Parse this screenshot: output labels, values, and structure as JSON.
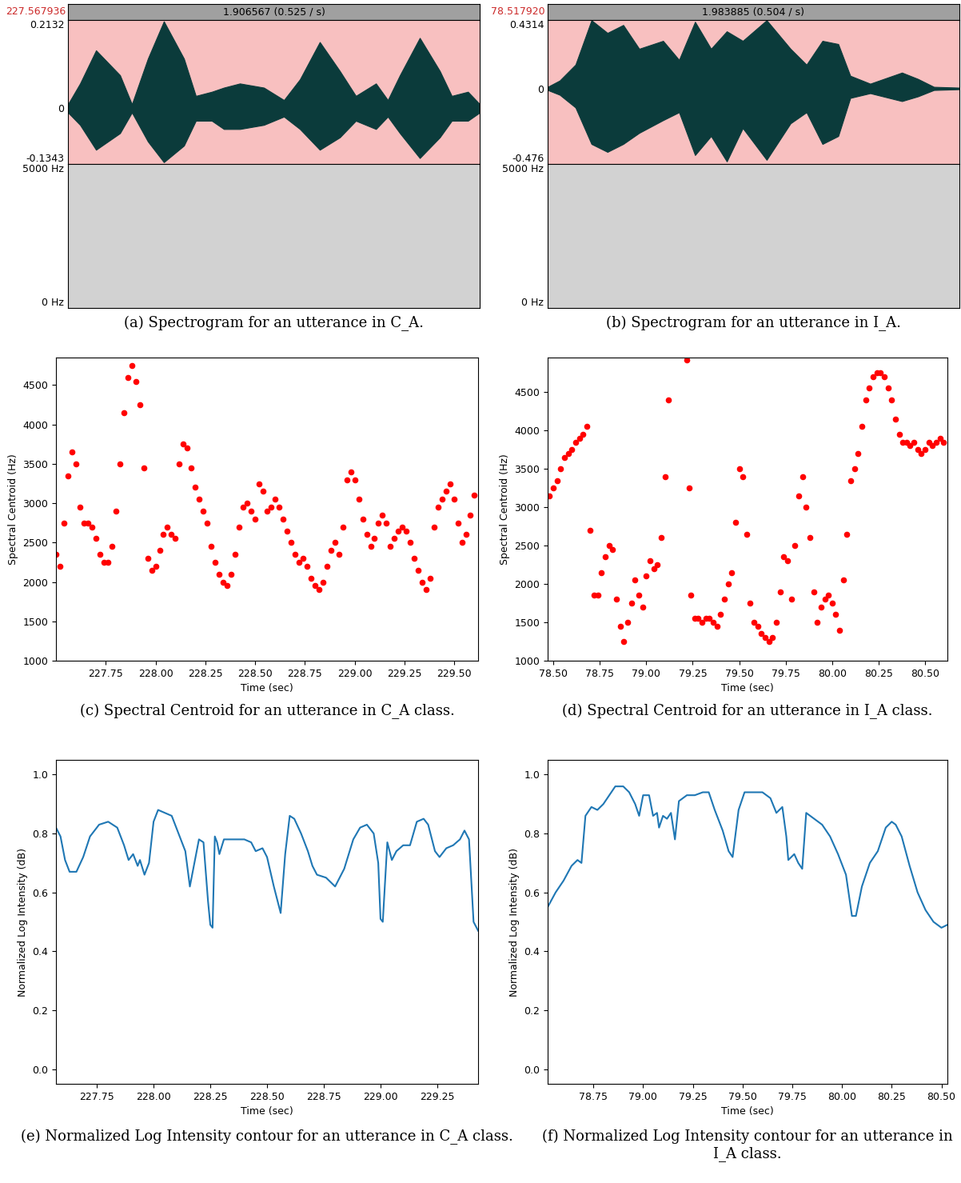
{
  "chart_data": [
    {
      "type": "spectrogram",
      "caption": "(a) Spectrogram for an utterance in C_A.",
      "header": "1.906567 (0.525 / s)",
      "start_label": "227.567936",
      "xlim": [
        227.567936,
        229.474503
      ],
      "tick_labels": "y",
      "waveform": {
        "color": "#0b3b3b",
        "ylim": [
          -0.1343,
          0.2132
        ],
        "yticks": [
          -0.1343,
          0,
          0.2132
        ],
        "x": [
          227.568,
          227.624,
          227.698,
          227.809,
          227.864,
          227.938,
          228.012,
          228.105,
          228.16,
          228.234,
          228.29,
          228.364,
          228.475,
          228.568,
          228.642,
          228.734,
          228.827,
          228.901,
          228.994,
          229.049,
          229.105,
          229.197,
          229.29,
          229.345,
          229.42,
          229.475
        ],
        "upper": [
          0.01,
          0.06,
          0.14,
          0.08,
          0.01,
          0.12,
          0.21,
          0.12,
          0.03,
          0.04,
          0.05,
          0.06,
          0.05,
          0.02,
          0.07,
          0.16,
          0.09,
          0.03,
          0.06,
          0.02,
          0.08,
          0.17,
          0.09,
          0.03,
          0.04,
          0.01
        ],
        "lower": [
          -0.01,
          -0.04,
          -0.1,
          -0.06,
          -0.01,
          -0.08,
          -0.13,
          -0.09,
          -0.03,
          -0.03,
          -0.05,
          -0.05,
          -0.04,
          -0.02,
          -0.05,
          -0.1,
          -0.07,
          -0.03,
          -0.05,
          -0.02,
          -0.06,
          -0.12,
          -0.07,
          -0.03,
          -0.03,
          -0.01
        ]
      },
      "spectrogram": {
        "ylim": [
          0,
          5000
        ],
        "yticks": [
          {
            "value": 0,
            "label": "0 Hz"
          },
          {
            "value": 5000,
            "label": "5000 Hz"
          }
        ]
      }
    },
    {
      "type": "spectrogram",
      "caption": "(b) Spectrogram for an utterance in I_A.",
      "header": "1.983885 (0.504 / s)",
      "start_label": "78.517920",
      "xlim": [
        78.51792,
        80.501805
      ],
      "tick_labels": "y",
      "waveform": {
        "color": "#0b3b3b",
        "ylim": [
          -0.476,
          0.4314
        ],
        "yticks": [
          -0.476,
          0,
          0.4314
        ],
        "x": [
          78.518,
          78.576,
          78.652,
          78.729,
          78.806,
          78.882,
          78.959,
          79.074,
          79.151,
          79.228,
          79.305,
          79.381,
          79.458,
          79.573,
          79.688,
          79.765,
          79.842,
          79.918,
          79.976,
          80.072,
          80.225,
          80.302,
          80.379,
          80.502
        ],
        "upper": [
          0.01,
          0.05,
          0.15,
          0.43,
          0.35,
          0.4,
          0.25,
          0.3,
          0.18,
          0.42,
          0.25,
          0.36,
          0.3,
          0.43,
          0.25,
          0.15,
          0.3,
          0.28,
          0.08,
          0.03,
          0.1,
          0.06,
          0.01,
          0.005
        ],
        "lower": [
          -0.01,
          -0.04,
          -0.12,
          -0.35,
          -0.4,
          -0.35,
          -0.28,
          -0.2,
          -0.15,
          -0.42,
          -0.3,
          -0.46,
          -0.25,
          -0.45,
          -0.22,
          -0.15,
          -0.35,
          -0.3,
          -0.06,
          -0.03,
          -0.08,
          -0.05,
          -0.01,
          -0.005
        ]
      },
      "spectrogram": {
        "ylim": [
          0,
          5000
        ],
        "yticks": [
          {
            "value": 0,
            "label": "0 Hz"
          },
          {
            "value": 5000,
            "label": "5000 Hz"
          }
        ]
      }
    },
    {
      "type": "scatter",
      "caption": "(c) Spectral Centroid for an utterance in C_A class.",
      "x_label": "Time (sec)",
      "y_label": "Spectral Centroid (Hz)",
      "color": "red",
      "marker": "o",
      "xlim": [
        227.5,
        229.62
      ],
      "ylim": [
        1000,
        4850
      ],
      "xticks": [
        {
          "value": 227.75,
          "label": "227.75"
        },
        {
          "value": 228.0,
          "label": "228.00"
        },
        {
          "value": 228.25,
          "label": "228.25"
        },
        {
          "value": 228.5,
          "label": "228.50"
        },
        {
          "value": 228.75,
          "label": "228.75"
        },
        {
          "value": 229.0,
          "label": "229.00"
        },
        {
          "value": 229.25,
          "label": "229.25"
        },
        {
          "value": 229.5,
          "label": "229.50"
        }
      ],
      "yticks": [
        1000,
        1500,
        2000,
        2500,
        3000,
        3500,
        4000,
        4500
      ],
      "x": [
        227.5,
        227.52,
        227.54,
        227.56,
        227.58,
        227.6,
        227.62,
        227.64,
        227.66,
        227.68,
        227.7,
        227.72,
        227.74,
        227.76,
        227.78,
        227.8,
        227.82,
        227.84,
        227.86,
        227.88,
        227.9,
        227.92,
        227.94,
        227.96,
        227.98,
        228.0,
        228.02,
        228.04,
        228.06,
        228.08,
        228.1,
        228.12,
        228.14,
        228.16,
        228.18,
        228.2,
        228.22,
        228.24,
        228.26,
        228.28,
        228.3,
        228.32,
        228.34,
        228.36,
        228.38,
        228.4,
        228.42,
        228.44,
        228.46,
        228.48,
        228.5,
        228.52,
        228.54,
        228.56,
        228.58,
        228.6,
        228.62,
        228.64,
        228.66,
        228.68,
        228.7,
        228.72,
        228.74,
        228.76,
        228.78,
        228.8,
        228.82,
        228.84,
        228.86,
        228.88,
        228.9,
        228.92,
        228.94,
        228.96,
        228.98,
        229.0,
        229.02,
        229.04,
        229.06,
        229.08,
        229.1,
        229.12,
        229.14,
        229.16,
        229.18,
        229.2,
        229.22,
        229.24,
        229.26,
        229.28,
        229.3,
        229.32,
        229.34,
        229.36,
        229.38,
        229.4,
        229.42,
        229.44,
        229.46,
        229.48,
        229.5,
        229.52,
        229.54,
        229.56,
        229.58,
        229.6
      ],
      "values": [
        2350,
        2200,
        2750,
        3350,
        3650,
        3500,
        2950,
        2750,
        2750,
        2700,
        2550,
        2350,
        2250,
        2250,
        2450,
        2900,
        3500,
        4150,
        4600,
        4750,
        4550,
        4250,
        3450,
        2300,
        2150,
        2200,
        2400,
        2600,
        2700,
        2600,
        2550,
        3500,
        3750,
        3700,
        3450,
        3200,
        3050,
        2900,
        2750,
        2450,
        2250,
        2100,
        2000,
        1950,
        2100,
        2350,
        2700,
        2950,
        3000,
        2900,
        2800,
        3250,
        3150,
        2900,
        2950,
        3050,
        2950,
        2800,
        2650,
        2500,
        2350,
        2250,
        2300,
        2200,
        2050,
        1950,
        1900,
        2000,
        2200,
        2400,
        2500,
        2350,
        2700,
        3300,
        3400,
        3300,
        3050,
        2800,
        2600,
        2450,
        2550,
        2750,
        2850,
        2750,
        2450,
        2550,
        2650,
        2700,
        2650,
        2500,
        2300,
        2150,
        2000,
        1900,
        2050,
        2700,
        2950,
        3050,
        3150,
        3250,
        3050,
        2750,
        2500,
        2600,
        2850,
        3100
      ]
    },
    {
      "type": "scatter",
      "caption": "(d) Spectral Centroid for an utterance in I_A class.",
      "x_label": "Time (sec)",
      "y_label": "Spectral Centroid (Hz)",
      "color": "red",
      "marker": "o",
      "xlim": [
        78.47,
        80.62
      ],
      "ylim": [
        1000,
        4950
      ],
      "xticks": [
        {
          "value": 78.5,
          "label": "78.50"
        },
        {
          "value": 78.75,
          "label": "78.75"
        },
        {
          "value": 79.0,
          "label": "79.00"
        },
        {
          "value": 79.25,
          "label": "79.25"
        },
        {
          "value": 79.5,
          "label": "79.50"
        },
        {
          "value": 79.75,
          "label": "79.75"
        },
        {
          "value": 80.0,
          "label": "80.00"
        },
        {
          "value": 80.25,
          "label": "80.25"
        },
        {
          "value": 80.5,
          "label": "80.50"
        }
      ],
      "yticks": [
        1000,
        1500,
        2000,
        2500,
        3000,
        3500,
        4000,
        4500
      ],
      "x": [
        78.48,
        78.5,
        78.52,
        78.54,
        78.56,
        78.58,
        78.6,
        78.62,
        78.64,
        78.66,
        78.68,
        78.7,
        78.72,
        78.74,
        78.76,
        78.78,
        78.8,
        78.82,
        78.84,
        78.86,
        78.88,
        78.9,
        78.92,
        78.94,
        78.96,
        78.98,
        79.0,
        79.02,
        79.04,
        79.06,
        79.08,
        79.1,
        79.12,
        79.22,
        79.23,
        79.24,
        79.26,
        79.28,
        79.3,
        79.32,
        79.34,
        79.36,
        79.38,
        79.4,
        79.42,
        79.44,
        79.46,
        79.48,
        79.5,
        79.52,
        79.54,
        79.56,
        79.58,
        79.6,
        79.62,
        79.64,
        79.66,
        79.68,
        79.7,
        79.72,
        79.74,
        79.76,
        79.78,
        79.8,
        79.82,
        79.84,
        79.86,
        79.88,
        79.9,
        79.92,
        79.94,
        79.96,
        79.98,
        80.0,
        80.02,
        80.04,
        80.06,
        80.08,
        80.1,
        80.12,
        80.14,
        80.16,
        80.18,
        80.2,
        80.22,
        80.24,
        80.26,
        80.28,
        80.3,
        80.32,
        80.34,
        80.36,
        80.38,
        80.4,
        80.42,
        80.44,
        80.46,
        80.48,
        80.5,
        80.52,
        80.54,
        80.56,
        80.58,
        80.6
      ],
      "values": [
        3150,
        3250,
        3350,
        3500,
        3650,
        3700,
        3750,
        3850,
        3900,
        3950,
        4050,
        2700,
        1850,
        1850,
        2150,
        2350,
        2500,
        2450,
        1800,
        1450,
        1250,
        1500,
        1750,
        2050,
        1850,
        1700,
        2100,
        2300,
        2200,
        2250,
        2600,
        3400,
        4400,
        4920,
        3250,
        1850,
        1550,
        1550,
        1500,
        1550,
        1550,
        1500,
        1450,
        1600,
        1800,
        2000,
        2150,
        2800,
        3500,
        3400,
        2650,
        1750,
        1500,
        1450,
        1350,
        1300,
        1250,
        1300,
        1500,
        1900,
        2350,
        2300,
        1800,
        2500,
        3150,
        3400,
        3000,
        2600,
        1900,
        1500,
        1700,
        1800,
        1850,
        1750,
        1600,
        1400,
        2050,
        2650,
        3350,
        3500,
        3700,
        4050,
        4400,
        4550,
        4700,
        4750,
        4750,
        4700,
        4550,
        4400,
        4150,
        3950,
        3850,
        3850,
        3800,
        3850,
        3750,
        3700,
        3750,
        3850,
        3800,
        3850,
        3900,
        3850
      ]
    },
    {
      "type": "line",
      "caption": "(e) Normalized Log Intensity contour for an utterance in C_A class.",
      "x_label": "Time (sec)",
      "y_label": "Normalized Log Intensity (dB)",
      "color": "#1f77b4",
      "xlim": [
        227.57,
        229.43
      ],
      "ylim": [
        -0.05,
        1.05
      ],
      "xticks": [
        {
          "value": 227.75,
          "label": "227.75"
        },
        {
          "value": 228.0,
          "label": "228.00"
        },
        {
          "value": 228.25,
          "label": "228.25"
        },
        {
          "value": 228.5,
          "label": "228.50"
        },
        {
          "value": 228.75,
          "label": "228.75"
        },
        {
          "value": 229.0,
          "label": "229.00"
        },
        {
          "value": 229.25,
          "label": "229.25"
        }
      ],
      "yticks": [
        {
          "value": 0,
          "label": "0.0"
        },
        {
          "value": 0.2,
          "label": "0.2"
        },
        {
          "value": 0.4,
          "label": "0.4"
        },
        {
          "value": 0.6,
          "label": "0.6"
        },
        {
          "value": 0.8,
          "label": "0.8"
        },
        {
          "value": 1,
          "label": "1.0"
        }
      ],
      "x": [
        227.57,
        227.59,
        227.61,
        227.63,
        227.66,
        227.69,
        227.72,
        227.76,
        227.8,
        227.84,
        227.87,
        227.89,
        227.91,
        227.93,
        227.94,
        227.96,
        227.98,
        228.0,
        228.02,
        228.05,
        228.08,
        228.11,
        228.14,
        228.16,
        228.18,
        228.2,
        228.22,
        228.24,
        228.25,
        228.26,
        228.27,
        228.28,
        228.29,
        228.31,
        228.35,
        228.4,
        228.43,
        228.45,
        228.48,
        228.5,
        228.53,
        228.56,
        228.58,
        228.6,
        228.62,
        228.65,
        228.68,
        228.7,
        228.72,
        228.76,
        228.8,
        228.84,
        228.88,
        228.91,
        228.94,
        228.97,
        228.99,
        229.0,
        229.01,
        229.03,
        229.05,
        229.07,
        229.1,
        229.13,
        229.16,
        229.19,
        229.21,
        229.24,
        229.26,
        229.29,
        229.32,
        229.35,
        229.37,
        229.39,
        229.41,
        229.43
      ],
      "values": [
        0.82,
        0.79,
        0.71,
        0.67,
        0.67,
        0.72,
        0.79,
        0.83,
        0.84,
        0.82,
        0.76,
        0.71,
        0.73,
        0.69,
        0.71,
        0.66,
        0.7,
        0.84,
        0.88,
        0.87,
        0.86,
        0.8,
        0.74,
        0.62,
        0.7,
        0.78,
        0.77,
        0.57,
        0.49,
        0.48,
        0.79,
        0.77,
        0.73,
        0.78,
        0.78,
        0.78,
        0.77,
        0.74,
        0.75,
        0.72,
        0.62,
        0.53,
        0.73,
        0.86,
        0.85,
        0.8,
        0.74,
        0.69,
        0.66,
        0.65,
        0.62,
        0.68,
        0.78,
        0.82,
        0.83,
        0.8,
        0.7,
        0.51,
        0.5,
        0.77,
        0.71,
        0.74,
        0.76,
        0.76,
        0.84,
        0.85,
        0.83,
        0.74,
        0.72,
        0.75,
        0.76,
        0.78,
        0.81,
        0.78,
        0.5,
        0.47
      ]
    },
    {
      "type": "line",
      "caption": "(f) Normalized Log Intensity contour for an utterance in I_A class.",
      "x_label": "Time (sec)",
      "y_label": "Normalized Log Intensity (dB)",
      "color": "#1f77b4",
      "xlim": [
        78.52,
        80.53
      ],
      "ylim": [
        -0.05,
        1.05
      ],
      "xticks": [
        {
          "value": 78.75,
          "label": "78.75"
        },
        {
          "value": 79.0,
          "label": "79.00"
        },
        {
          "value": 79.25,
          "label": "79.25"
        },
        {
          "value": 79.5,
          "label": "79.50"
        },
        {
          "value": 79.75,
          "label": "79.75"
        },
        {
          "value": 80.0,
          "label": "80.00"
        },
        {
          "value": 80.25,
          "label": "80.25"
        },
        {
          "value": 80.5,
          "label": "80.50"
        }
      ],
      "yticks": [
        {
          "value": 0,
          "label": "0.0"
        },
        {
          "value": 0.2,
          "label": "0.2"
        },
        {
          "value": 0.4,
          "label": "0.4"
        },
        {
          "value": 0.6,
          "label": "0.6"
        },
        {
          "value": 0.8,
          "label": "0.8"
        },
        {
          "value": 1,
          "label": "1.0"
        }
      ],
      "x": [
        78.52,
        78.56,
        78.6,
        78.64,
        78.67,
        78.69,
        78.71,
        78.74,
        78.77,
        78.8,
        78.83,
        78.86,
        78.9,
        78.93,
        78.96,
        78.98,
        79.0,
        79.03,
        79.05,
        79.07,
        79.08,
        79.1,
        79.12,
        79.14,
        79.16,
        79.18,
        79.22,
        79.26,
        79.3,
        79.33,
        79.36,
        79.4,
        79.43,
        79.45,
        79.48,
        79.51,
        79.55,
        79.6,
        79.64,
        79.67,
        79.7,
        79.72,
        79.73,
        79.76,
        79.78,
        79.8,
        79.82,
        79.86,
        79.9,
        79.94,
        79.98,
        80.02,
        80.05,
        80.07,
        80.1,
        80.14,
        80.18,
        80.22,
        80.25,
        80.27,
        80.3,
        80.34,
        80.38,
        80.42,
        80.46,
        80.5,
        80.53
      ],
      "values": [
        0.55,
        0.6,
        0.64,
        0.69,
        0.71,
        0.7,
        0.86,
        0.89,
        0.88,
        0.9,
        0.93,
        0.96,
        0.96,
        0.94,
        0.9,
        0.86,
        0.93,
        0.93,
        0.86,
        0.87,
        0.82,
        0.86,
        0.85,
        0.87,
        0.78,
        0.91,
        0.93,
        0.93,
        0.94,
        0.94,
        0.88,
        0.81,
        0.74,
        0.72,
        0.88,
        0.94,
        0.94,
        0.94,
        0.92,
        0.87,
        0.89,
        0.79,
        0.71,
        0.73,
        0.7,
        0.68,
        0.87,
        0.85,
        0.83,
        0.79,
        0.73,
        0.66,
        0.52,
        0.52,
        0.62,
        0.7,
        0.74,
        0.82,
        0.84,
        0.83,
        0.79,
        0.69,
        0.6,
        0.54,
        0.5,
        0.48,
        0.49
      ]
    }
  ]
}
